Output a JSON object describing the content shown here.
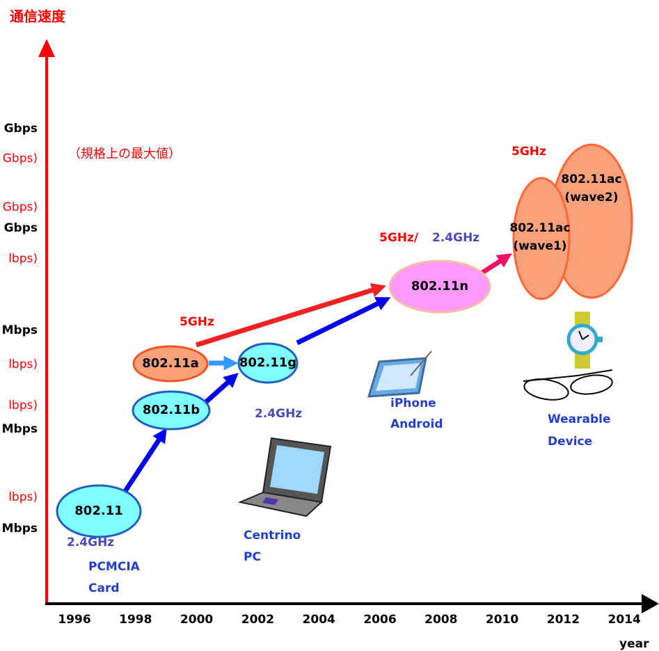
{
  "title": "通信速度",
  "note": "（規格上の最大値）",
  "speed_labels": [
    "Gbps",
    "Gbps)",
    "Gbps)",
    "Gbps",
    "lbps)",
    "Mbps",
    "lbps)",
    "lbps)",
    "Mbps",
    "lbps)",
    "Mbps"
  ],
  "years": [
    "1996",
    "1998",
    "2000",
    "2002",
    "2004",
    "2006",
    "2008",
    "2010",
    "2012",
    "2014"
  ],
  "x_axis_label": "year",
  "nodes": [
    "802.11",
    "802.11b",
    "802.11a",
    "802.11g",
    "802.11n",
    "802.11ac\n(wave1)",
    "802.11ac\n(wave2)"
  ],
  "bands": {
    "a": "5GHz",
    "g": "2.4GHz",
    "n_5": "5GHz/",
    "n_24": "2.4GHz",
    "ac": "5GHz",
    "legacy": "2.4GHz"
  },
  "devices": {
    "pcmcia": [
      "PCMCIA",
      "Card"
    ],
    "centrino": [
      "Centrino",
      "PC"
    ],
    "phone": [
      "iPhone",
      "Android"
    ],
    "wearable": [
      "Wearable",
      "Device"
    ]
  }
}
